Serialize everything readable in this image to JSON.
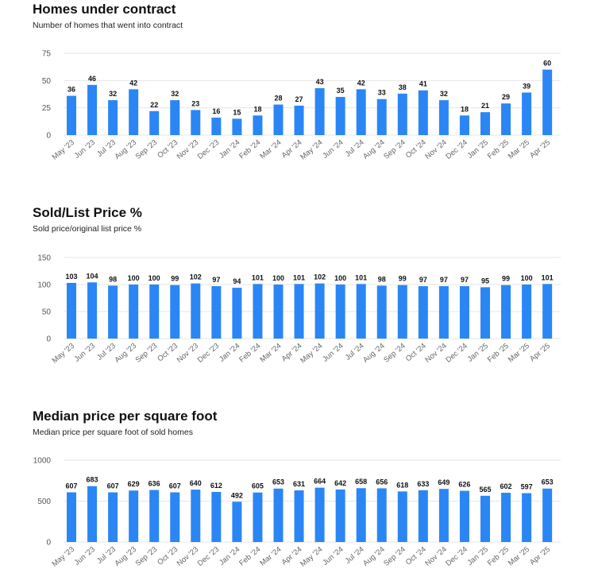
{
  "chart_data": [
    {
      "type": "bar",
      "title": "Homes under contract",
      "subtitle": "Number of homes that went into contract",
      "categories": [
        "May '23",
        "Jun '23",
        "Jul '23",
        "Aug '23",
        "Sep '23",
        "Oct '23",
        "Nov '23",
        "Dec '23",
        "Jan '24",
        "Feb '24",
        "Mar '24",
        "Apr '24",
        "May '24",
        "Jun '24",
        "Jul '24",
        "Aug '24",
        "Sep '24",
        "Oct '24",
        "Nov '24",
        "Dec '24",
        "Jan '25",
        "Feb '25",
        "Mar '25",
        "Apr '25"
      ],
      "values": [
        36,
        46,
        32,
        42,
        22,
        32,
        23,
        16,
        15,
        18,
        28,
        27,
        43,
        35,
        42,
        33,
        38,
        41,
        32,
        18,
        21,
        29,
        39,
        60
      ],
      "yticks": [
        0,
        25,
        50,
        75
      ],
      "ylim": [
        0,
        75
      ],
      "grid": true,
      "bar_color": "#2b86f5"
    },
    {
      "type": "bar",
      "title": "Sold/List Price %",
      "subtitle": "Sold price/original list price %",
      "categories": [
        "May '23",
        "Jun '23",
        "Jul '23",
        "Aug '23",
        "Sep '23",
        "Oct '23",
        "Nov '23",
        "Dec '23",
        "Jan '24",
        "Feb '24",
        "Mar '24",
        "Apr '24",
        "May '24",
        "Jun '24",
        "Jul '24",
        "Aug '24",
        "Sep '24",
        "Oct '24",
        "Nov '24",
        "Dec '24",
        "Jan '25",
        "Feb '25",
        "Mar '25",
        "Apr '25"
      ],
      "values": [
        103,
        104,
        98,
        100,
        100,
        99,
        102,
        97,
        94,
        101,
        100,
        101,
        102,
        100,
        101,
        98,
        99,
        97,
        97,
        97,
        95,
        99,
        100,
        101
      ],
      "yticks": [
        0,
        50,
        100,
        150
      ],
      "ylim": [
        0,
        150
      ],
      "grid": true,
      "bar_color": "#2b86f5"
    },
    {
      "type": "bar",
      "title": "Median price per square foot",
      "subtitle": "Median price per square foot of sold homes",
      "categories": [
        "May '23",
        "Jun '23",
        "Jul '23",
        "Aug '23",
        "Sep '23",
        "Oct '23",
        "Nov '23",
        "Dec '23",
        "Jan '24",
        "Feb '24",
        "Mar '24",
        "Apr '24",
        "May '24",
        "Jun '24",
        "Jul '24",
        "Aug '24",
        "Sep '24",
        "Oct '24",
        "Nov '24",
        "Dec '24",
        "Jan '25",
        "Feb '25",
        "Mar '25",
        "Apr '25"
      ],
      "values": [
        607,
        683,
        607,
        629,
        636,
        607,
        640,
        612,
        492,
        605,
        653,
        631,
        664,
        642,
        658,
        656,
        618,
        633,
        649,
        626,
        565,
        602,
        597,
        653
      ],
      "yticks": [
        0,
        500,
        1000
      ],
      "ylim": [
        0,
        1000
      ],
      "grid": true,
      "bar_color": "#2b86f5"
    }
  ]
}
